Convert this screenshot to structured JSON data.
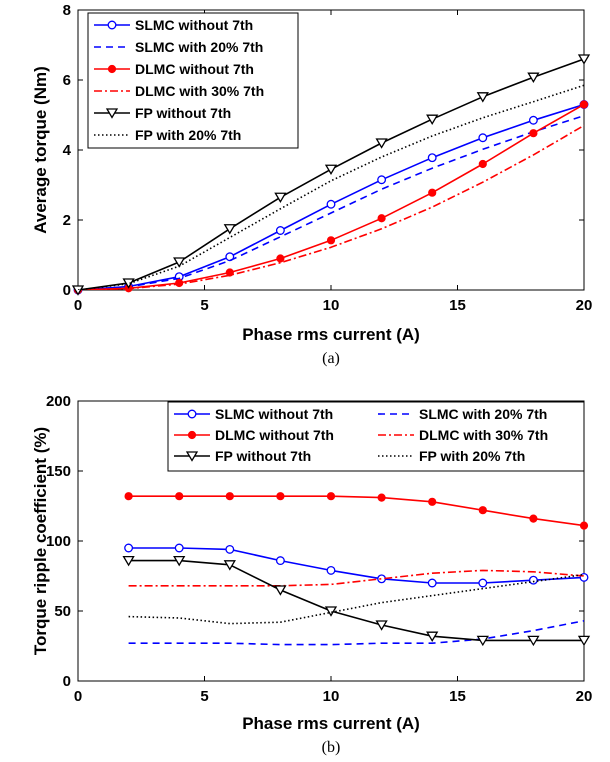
{
  "chart_data": [
    {
      "type": "line",
      "caption": "(a)",
      "xlabel": "Phase rms current (A)",
      "ylabel": "Average torque (Nm)",
      "xlim": [
        0,
        20
      ],
      "ylim": [
        0,
        8
      ],
      "xticks": [
        0,
        5,
        10,
        15,
        20
      ],
      "yticks": [
        0,
        2,
        4,
        6,
        8
      ],
      "legend_position": "top-left",
      "series": [
        {
          "name": "SLMC without 7th",
          "color": "#0000ff",
          "dash": "solid",
          "marker": "circle-open",
          "x": [
            0,
            2,
            4,
            6,
            8,
            10,
            12,
            14,
            16,
            18,
            20
          ],
          "y": [
            0,
            0.1,
            0.38,
            0.95,
            1.7,
            2.45,
            3.15,
            3.78,
            4.35,
            4.85,
            5.3
          ]
        },
        {
          "name": "SLMC with 20% 7th",
          "color": "#0000ff",
          "dash": "dashed",
          "marker": "none",
          "x": [
            0,
            2,
            4,
            6,
            8,
            10,
            12,
            14,
            16,
            18,
            20
          ],
          "y": [
            0,
            0.09,
            0.33,
            0.84,
            1.52,
            2.2,
            2.88,
            3.48,
            4.02,
            4.52,
            4.98
          ]
        },
        {
          "name": "DLMC without 7th",
          "color": "#ff0000",
          "dash": "solid",
          "marker": "dot",
          "x": [
            0,
            2,
            4,
            6,
            8,
            10,
            12,
            14,
            16,
            18,
            20
          ],
          "y": [
            0,
            0.05,
            0.2,
            0.5,
            0.9,
            1.42,
            2.05,
            2.78,
            3.6,
            4.48,
            5.3
          ]
        },
        {
          "name": "DLMC with 30% 7th",
          "color": "#ff0000",
          "dash": "dashdot",
          "marker": "none",
          "x": [
            0,
            2,
            4,
            6,
            8,
            10,
            12,
            14,
            16,
            18,
            20
          ],
          "y": [
            0,
            0.04,
            0.17,
            0.42,
            0.78,
            1.22,
            1.75,
            2.37,
            3.08,
            3.86,
            4.7
          ]
        },
        {
          "name": "FP without 7th",
          "color": "#000000",
          "dash": "solid",
          "marker": "triangle-down",
          "x": [
            0,
            2,
            4,
            6,
            8,
            10,
            12,
            14,
            16,
            18,
            20
          ],
          "y": [
            0,
            0.2,
            0.8,
            1.75,
            2.65,
            3.45,
            4.2,
            4.88,
            5.52,
            6.08,
            6.6
          ]
        },
        {
          "name": "FP with 20% 7th",
          "color": "#000000",
          "dash": "dotted",
          "marker": "none",
          "x": [
            0,
            2,
            4,
            6,
            8,
            10,
            12,
            14,
            16,
            18,
            20
          ],
          "y": [
            0,
            0.18,
            0.68,
            1.5,
            2.32,
            3.12,
            3.8,
            4.4,
            4.92,
            5.38,
            5.85
          ]
        }
      ]
    },
    {
      "type": "line",
      "caption": "(b)",
      "xlabel": "Phase rms current (A)",
      "ylabel": "Torque ripple coefficient (%)",
      "xlim": [
        0,
        20
      ],
      "ylim": [
        0,
        200
      ],
      "xticks": [
        0,
        5,
        10,
        15,
        20
      ],
      "yticks": [
        0,
        50,
        100,
        150,
        200
      ],
      "legend_position": "top",
      "series": [
        {
          "name": "SLMC without 7th",
          "color": "#0000ff",
          "dash": "solid",
          "marker": "circle-open",
          "x": [
            2,
            4,
            6,
            8,
            10,
            12,
            14,
            16,
            18,
            20
          ],
          "y": [
            95,
            95,
            94,
            86,
            79,
            73,
            70,
            70,
            72,
            74
          ]
        },
        {
          "name": "SLMC with 20% 7th",
          "color": "#0000ff",
          "dash": "dashed",
          "marker": "none",
          "x": [
            2,
            4,
            6,
            8,
            10,
            12,
            14,
            16,
            18,
            20
          ],
          "y": [
            27,
            27,
            27,
            26,
            26,
            27,
            27,
            30,
            36,
            43
          ]
        },
        {
          "name": "DLMC without 7th",
          "color": "#ff0000",
          "dash": "solid",
          "marker": "dot",
          "x": [
            2,
            4,
            6,
            8,
            10,
            12,
            14,
            16,
            18,
            20
          ],
          "y": [
            132,
            132,
            132,
            132,
            132,
            131,
            128,
            122,
            116,
            111
          ]
        },
        {
          "name": "DLMC with 30% 7th",
          "color": "#ff0000",
          "dash": "dashdot",
          "marker": "none",
          "x": [
            2,
            4,
            6,
            8,
            10,
            12,
            14,
            16,
            18,
            20
          ],
          "y": [
            68,
            68,
            68,
            68,
            69,
            73,
            77,
            79,
            78,
            75
          ]
        },
        {
          "name": "FP without 7th",
          "color": "#000000",
          "dash": "solid",
          "marker": "triangle-down",
          "x": [
            2,
            4,
            6,
            8,
            10,
            12,
            14,
            16,
            18,
            20
          ],
          "y": [
            86,
            86,
            83,
            65,
            50,
            40,
            32,
            29,
            29,
            29
          ]
        },
        {
          "name": "FP with 20% 7th",
          "color": "#000000",
          "dash": "dotted",
          "marker": "none",
          "x": [
            2,
            4,
            6,
            8,
            10,
            12,
            14,
            16,
            18,
            20
          ],
          "y": [
            46,
            45,
            41,
            42,
            49,
            56,
            61,
            66,
            71,
            76
          ]
        }
      ]
    }
  ]
}
